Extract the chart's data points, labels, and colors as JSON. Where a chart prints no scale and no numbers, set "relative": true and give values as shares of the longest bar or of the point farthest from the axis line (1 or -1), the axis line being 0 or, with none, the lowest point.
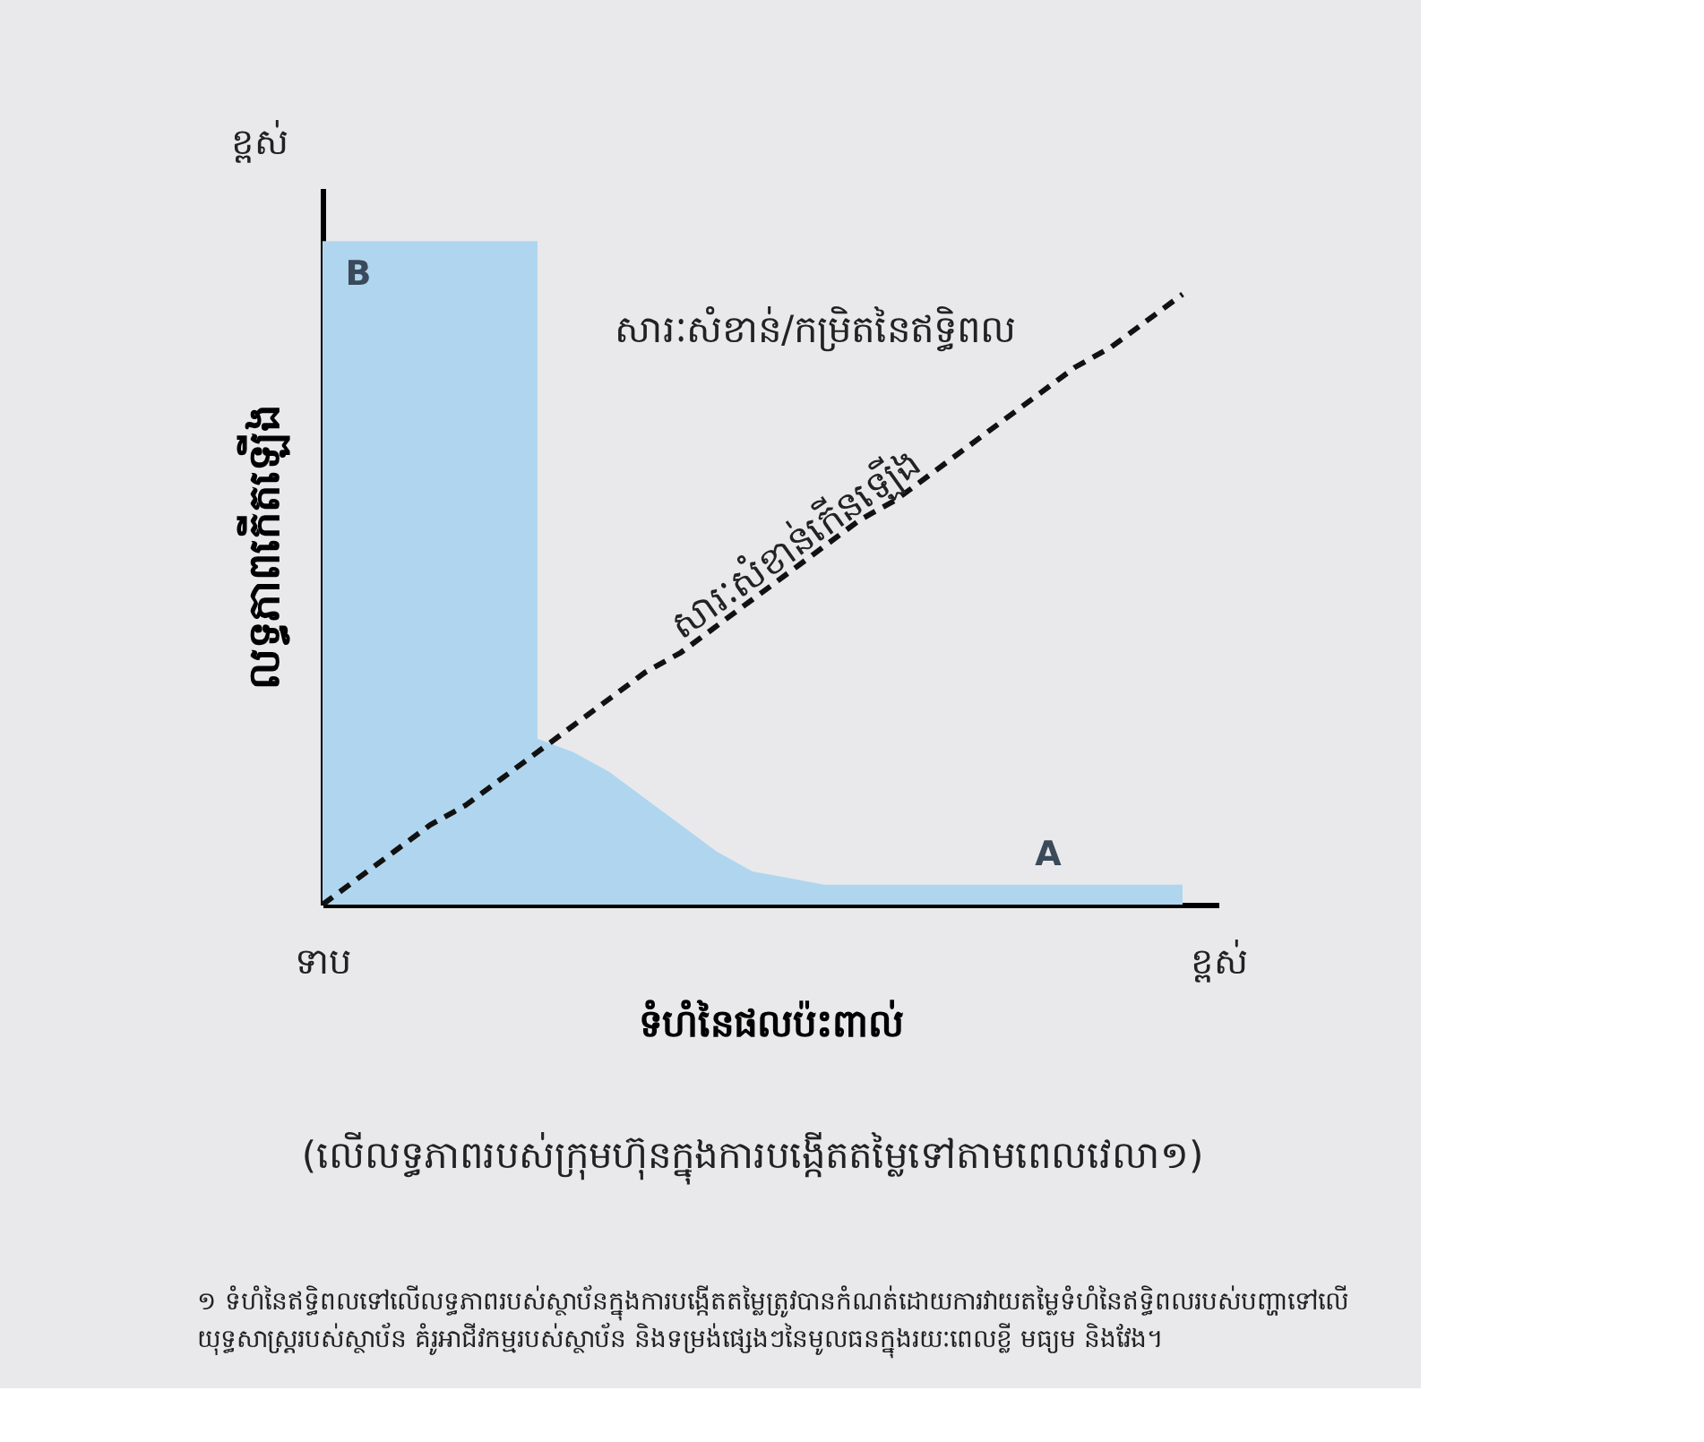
{
  "chart_data": {
    "type": "area",
    "relative": true,
    "xlabel": "ទំហំនៃផលប៉ះពាល់",
    "ylabel": "លទ្ធភាពកើតឡើង",
    "categories": [
      "ទាប",
      null,
      null,
      null,
      null,
      null,
      null,
      null,
      null,
      null,
      null,
      null,
      null,
      null,
      null,
      null,
      null,
      null,
      null,
      null,
      null,
      null,
      null,
      null,
      null,
      "ខ្ពស់"
    ],
    "tick_labels": "x",
    "grid": false,
    "series": [
      {
        "color": "#b0d6ef",
        "values": [
          1,
          1,
          1,
          1,
          1,
          1,
          1,
          null,
          null,
          null,
          null,
          null,
          null,
          null,
          null,
          null,
          null,
          null,
          null,
          null,
          null,
          null,
          null,
          null,
          null,
          null
        ]
      },
      {
        "color": "#b0d6ef",
        "values": [
          null,
          null,
          null,
          null,
          null,
          null,
          0.25,
          0.23,
          0.2,
          0.16,
          0.12,
          0.08,
          0.05,
          0.04,
          0.03,
          0.03,
          0.03,
          0.03,
          0.03,
          0.03,
          0.03,
          0.03,
          0.03,
          0.03,
          0.03,
          null
        ]
      },
      {
        "type": "line",
        "color": "#111111",
        "line_style": "dashed",
        "values": [
          0,
          0.04,
          0.08,
          0.12,
          0.15,
          0.19,
          0.23,
          0.27,
          0.31,
          0.35,
          0.38,
          0.42,
          0.46,
          0.5,
          0.54,
          0.58,
          0.61,
          0.65,
          0.69,
          0.73,
          0.77,
          0.81,
          0.84,
          0.88,
          0.92,
          null
        ]
      }
    ],
    "annotations": [
      "ខ្ពស់",
      "B",
      "សារៈសំខាន់/កម្រិតនៃឥទ្ធិពល",
      "សារៈសំខាន់កើនឡើង",
      "A",
      "(លើលទ្ធភាពរបស់ក្រុមហ៊ុនក្នុងការបង្កើតតម្លៃទៅតាមពេលវេលា១)",
      "១ ទំហំនៃឥទ្ធិពលទៅលើលទ្ធភាពរបស់ស្ថាប័នក្នុងការបង្កើតតម្លៃត្រូវបានកំណត់ដោយការវាយតម្លៃទំហំនៃឥទ្ធិពលរបស់បញ្ហាទៅលើ\nយុទ្ធសាស្រ្តរបស់ស្ថាប័ន គំរូអាជីវកម្មរបស់ស្ថាប័ន និងទម្រង់ផ្សេងៗនៃមូលធនក្នុងរយៈពេលខ្លី មធ្យម និងវែង។"
    ]
  }
}
